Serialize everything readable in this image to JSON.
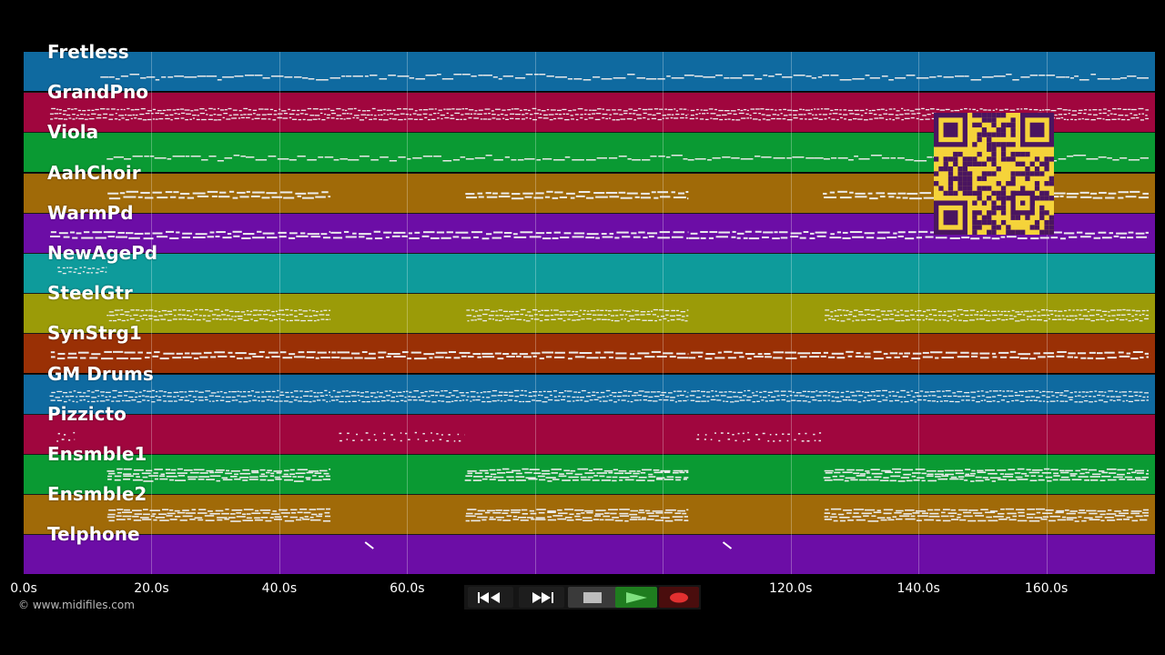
{
  "tracks": [
    {
      "name": "Fretless",
      "color": "#0f6aa0",
      "pattern": "line",
      "segments": [
        [
          12,
          176
        ]
      ]
    },
    {
      "name": "GrandPno",
      "color": "#a0063e",
      "pattern": "dense",
      "segments": [
        [
          4,
          48
        ],
        [
          48,
          104
        ],
        [
          104,
          176
        ]
      ]
    },
    {
      "name": "Viola",
      "color": "#0a9a33",
      "pattern": "line",
      "segments": [
        [
          13,
          176
        ]
      ]
    },
    {
      "name": "AahChoir",
      "color": "#a06a08",
      "pattern": "blocks",
      "segments": [
        [
          13,
          48
        ],
        [
          69,
          104
        ],
        [
          125,
          176
        ]
      ]
    },
    {
      "name": "WarmPd",
      "color": "#6c0da6",
      "pattern": "blocks",
      "segments": [
        [
          4,
          48
        ],
        [
          48,
          104
        ],
        [
          104,
          176
        ]
      ]
    },
    {
      "name": "NewAgePd",
      "color": "#0e9b9b",
      "pattern": "tiny",
      "segments": [
        [
          5,
          13
        ]
      ]
    },
    {
      "name": "SteelGtr",
      "color": "#9b9b08",
      "pattern": "dense",
      "segments": [
        [
          13,
          48
        ],
        [
          69,
          104
        ],
        [
          125,
          176
        ]
      ]
    },
    {
      "name": "SynStrg1",
      "color": "#9a3005",
      "pattern": "blocks",
      "segments": [
        [
          4,
          48
        ],
        [
          48,
          104
        ],
        [
          104,
          176
        ]
      ]
    },
    {
      "name": "GM Drums",
      "color": "#0f6aa0",
      "pattern": "dense",
      "segments": [
        [
          4,
          48
        ],
        [
          48,
          104
        ],
        [
          104,
          176
        ]
      ]
    },
    {
      "name": "Pizzicto",
      "color": "#a0063e",
      "pattern": "sparse",
      "segments": [
        [
          5,
          8
        ],
        [
          49,
          69
        ],
        [
          105,
          125
        ]
      ]
    },
    {
      "name": "Ensmble1",
      "color": "#0a9a33",
      "pattern": "thick",
      "segments": [
        [
          13,
          48
        ],
        [
          69,
          104
        ],
        [
          125,
          176
        ]
      ]
    },
    {
      "name": "Ensmble2",
      "color": "#a06a08",
      "pattern": "thick",
      "segments": [
        [
          13,
          48
        ],
        [
          69,
          104
        ],
        [
          125,
          176
        ]
      ]
    },
    {
      "name": "Telphone",
      "color": "#6c0da6",
      "pattern": "slash",
      "segments": [
        [
          54,
          55
        ],
        [
          110,
          111
        ]
      ]
    }
  ],
  "timeline": {
    "max_seconds": 177,
    "gridlines": [
      20,
      40,
      60,
      80,
      100,
      120,
      140,
      160
    ],
    "ticks": [
      {
        "t": 0,
        "label": "0.0s"
      },
      {
        "t": 20,
        "label": "20.0s"
      },
      {
        "t": 40,
        "label": "40.0s"
      },
      {
        "t": 60,
        "label": "60.0s"
      },
      {
        "t": 120,
        "label": "120.0s"
      },
      {
        "t": 140,
        "label": "140.0s"
      },
      {
        "t": 160,
        "label": "160.0s"
      }
    ]
  },
  "copyright": "© www.midifiles.com",
  "controls": [
    {
      "name": "rewind-button",
      "icon": "rewind-icon"
    },
    {
      "name": "fast-forward-button",
      "icon": "fast-forward-icon"
    },
    {
      "name": "stop-button",
      "icon": "stop-icon"
    },
    {
      "name": "play-button",
      "icon": "play-icon"
    },
    {
      "name": "record-button",
      "icon": "record-icon"
    }
  ],
  "qr_code": {
    "icon": "qr-code-icon",
    "fg": "#4a1560",
    "bg": "#f5d33a"
  }
}
